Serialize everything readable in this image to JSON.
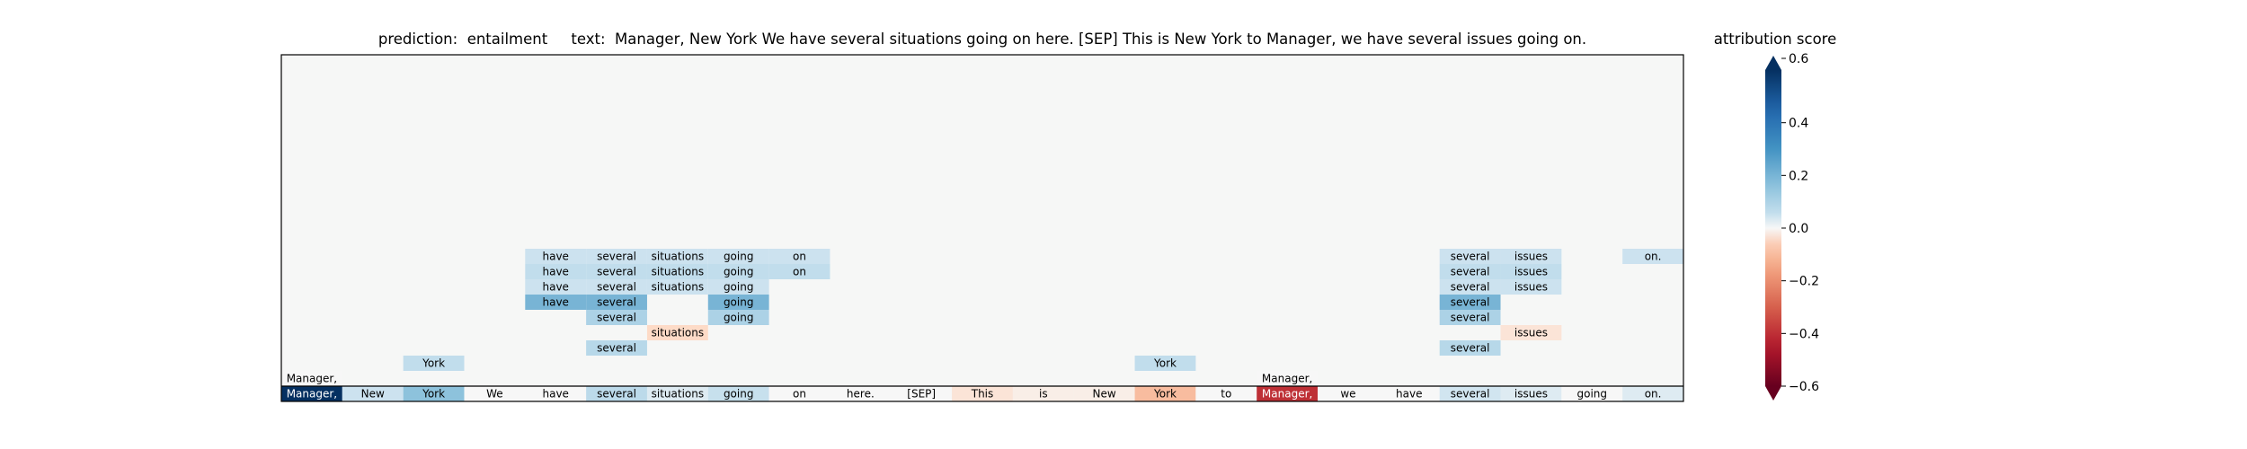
{
  "header": {
    "title": "prediction:  entailment     text:  Manager, New York We have several situations going on here. [SEP] This is New York to Manager, we have several issues going on.",
    "colorbar_title": "attribution score"
  },
  "chart_data": {
    "type": "heatmap",
    "title": "prediction:  entailment     text:  Manager, New York We have several situations going on here. [SEP] This is New York to Manager, we have several issues going on.",
    "prediction": "entailment",
    "tokens": [
      "Manager,",
      "New",
      "York",
      "We",
      "have",
      "several",
      "situations",
      "going",
      "on",
      "here.",
      "[SEP]",
      "This",
      "is",
      "New",
      "York",
      "to",
      "Manager,",
      "we",
      "have",
      "several",
      "issues",
      "going",
      "on."
    ],
    "bottom_row_scores": [
      0.62,
      0.04,
      0.16,
      0.0,
      0.0,
      0.07,
      0.02,
      0.05,
      0.0,
      0.0,
      0.0,
      -0.02,
      -0.01,
      -0.01,
      -0.1,
      0.0,
      -0.4,
      0.0,
      0.0,
      0.03,
      0.02,
      0.0,
      0.02
    ],
    "upper_cells": [
      {
        "layer": 1,
        "token": 16,
        "score": 0.0
      },
      {
        "layer": 1,
        "token": 0,
        "score": 0.0
      },
      {
        "layer": 2,
        "token": 2,
        "score": 0.06
      },
      {
        "layer": 2,
        "token": 14,
        "score": 0.06
      },
      {
        "layer": 3,
        "token": 5,
        "score": 0.08
      },
      {
        "layer": 3,
        "token": 19,
        "score": 0.08
      },
      {
        "layer": 4,
        "token": 6,
        "score": -0.03
      },
      {
        "layer": 4,
        "token": 20,
        "score": -0.02
      },
      {
        "layer": 5,
        "token": 5,
        "score": 0.1
      },
      {
        "layer": 5,
        "token": 7,
        "score": 0.1
      },
      {
        "layer": 5,
        "token": 19,
        "score": 0.1
      },
      {
        "layer": 6,
        "token": 4,
        "score": 0.2
      },
      {
        "layer": 6,
        "token": 5,
        "score": 0.2
      },
      {
        "layer": 6,
        "token": 7,
        "score": 0.2
      },
      {
        "layer": 6,
        "token": 19,
        "score": 0.2
      },
      {
        "layer": 7,
        "token": 4,
        "score": 0.04
      },
      {
        "layer": 7,
        "token": 5,
        "score": 0.04
      },
      {
        "layer": 7,
        "token": 6,
        "score": 0.04
      },
      {
        "layer": 7,
        "token": 7,
        "score": 0.04
      },
      {
        "layer": 7,
        "token": 19,
        "score": 0.04
      },
      {
        "layer": 7,
        "token": 20,
        "score": 0.04
      },
      {
        "layer": 8,
        "token": 4,
        "score": 0.06
      },
      {
        "layer": 8,
        "token": 5,
        "score": 0.06
      },
      {
        "layer": 8,
        "token": 6,
        "score": 0.06
      },
      {
        "layer": 8,
        "token": 7,
        "score": 0.06
      },
      {
        "layer": 8,
        "token": 8,
        "score": 0.06
      },
      {
        "layer": 8,
        "token": 19,
        "score": 0.06
      },
      {
        "layer": 8,
        "token": 20,
        "score": 0.06
      },
      {
        "layer": 9,
        "token": 4,
        "score": 0.04
      },
      {
        "layer": 9,
        "token": 5,
        "score": 0.04
      },
      {
        "layer": 9,
        "token": 6,
        "score": 0.04
      },
      {
        "layer": 9,
        "token": 7,
        "score": 0.04
      },
      {
        "layer": 9,
        "token": 8,
        "score": 0.04
      },
      {
        "layer": 9,
        "token": 19,
        "score": 0.04
      },
      {
        "layer": 9,
        "token": 20,
        "score": 0.04
      },
      {
        "layer": 9,
        "token": 22,
        "score": 0.04
      }
    ],
    "colorbar": {
      "label": "attribution score",
      "range": [
        -0.6,
        0.6
      ],
      "ticks": [
        -0.6,
        -0.4,
        -0.2,
        0.0,
        0.2,
        0.4,
        0.6
      ],
      "tick_labels": [
        "−0.6",
        "−0.4",
        "−0.2",
        "0.0",
        "0.2",
        "0.4",
        "0.6"
      ],
      "colormap": "RdBu"
    },
    "colors": {
      "background": "#f6f7f6",
      "negative": "#67001f",
      "positive": "#053061",
      "neutral": "#f7f7f7"
    }
  }
}
